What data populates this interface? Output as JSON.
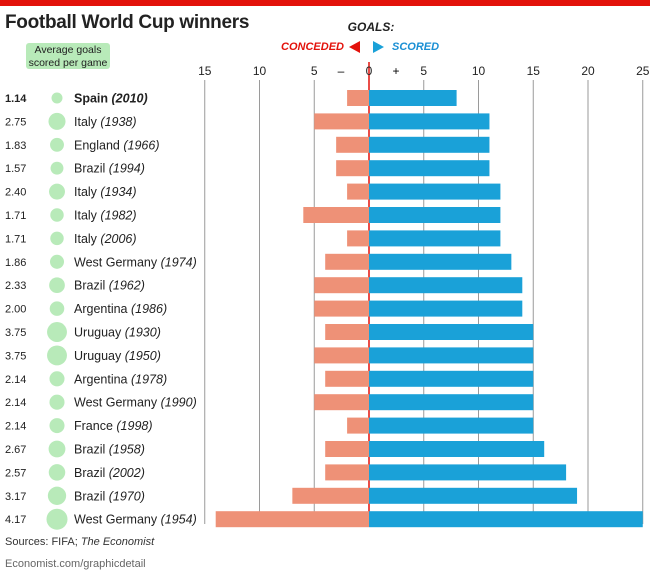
{
  "title": "Football World Cup winners",
  "legend": {
    "badge_line1": "Average goals",
    "badge_line2": "scored per game",
    "goals_heading": "GOALS:",
    "conceded_label": "CONCEDED",
    "scored_label": "SCORED",
    "minus_sign": "–",
    "plus_sign": "+"
  },
  "source": {
    "prefix": "Sources: FIFA; ",
    "publication": "The Economist"
  },
  "footer": "Economist.com/graphicdetail",
  "colors": {
    "accent_red": "#e3120b",
    "conceded": "#ee9177",
    "scored": "#1aa1d8",
    "bubble": "#b8eab9",
    "label_blue": "#1a8fd4",
    "grid": "#9a9a9a",
    "zero_line": "#e3120b"
  },
  "chart_data": {
    "type": "bar",
    "orientation": "horizontal",
    "title": "Football World Cup winners",
    "xlabel": "GOALS: CONCEDED / SCORED",
    "xlim": [
      -15,
      25
    ],
    "ticks": [
      -15,
      -10,
      -5,
      0,
      5,
      10,
      15,
      20,
      25
    ],
    "tick_labels": [
      "15",
      "10",
      "5",
      "0",
      "5",
      "10",
      "15",
      "20",
      "25"
    ],
    "rows": [
      {
        "team": "Spain",
        "year": "(2010)",
        "avg": "1.14",
        "avg_value": 1.14,
        "conceded": 2,
        "scored": 8,
        "highlight": true
      },
      {
        "team": "Italy",
        "year": "(1938)",
        "avg": "2.75",
        "avg_value": 2.75,
        "conceded": 5,
        "scored": 11
      },
      {
        "team": "England",
        "year": "(1966)",
        "avg": "1.83",
        "avg_value": 1.83,
        "conceded": 3,
        "scored": 11
      },
      {
        "team": "Brazil",
        "year": "(1994)",
        "avg": "1.57",
        "avg_value": 1.57,
        "conceded": 3,
        "scored": 11
      },
      {
        "team": "Italy",
        "year": "(1934)",
        "avg": "2.40",
        "avg_value": 2.4,
        "conceded": 2,
        "scored": 12
      },
      {
        "team": "Italy",
        "year": "(1982)",
        "avg": "1.71",
        "avg_value": 1.71,
        "conceded": 6,
        "scored": 12
      },
      {
        "team": "Italy",
        "year": "(2006)",
        "avg": "1.71",
        "avg_value": 1.71,
        "conceded": 2,
        "scored": 12
      },
      {
        "team": "West Germany",
        "year": "(1974)",
        "avg": "1.86",
        "avg_value": 1.86,
        "conceded": 4,
        "scored": 13
      },
      {
        "team": "Brazil",
        "year": "(1962)",
        "avg": "2.33",
        "avg_value": 2.33,
        "conceded": 5,
        "scored": 14
      },
      {
        "team": "Argentina",
        "year": "(1986)",
        "avg": "2.00",
        "avg_value": 2.0,
        "conceded": 5,
        "scored": 14
      },
      {
        "team": "Uruguay",
        "year": "(1930)",
        "avg": "3.75",
        "avg_value": 3.75,
        "conceded": 4,
        "scored": 15
      },
      {
        "team": "Uruguay",
        "year": "(1950)",
        "avg": "3.75",
        "avg_value": 3.75,
        "conceded": 5,
        "scored": 15
      },
      {
        "team": "Argentina",
        "year": "(1978)",
        "avg": "2.14",
        "avg_value": 2.14,
        "conceded": 4,
        "scored": 15
      },
      {
        "team": "West Germany",
        "year": "(1990)",
        "avg": "2.14",
        "avg_value": 2.14,
        "conceded": 5,
        "scored": 15
      },
      {
        "team": "France",
        "year": "(1998)",
        "avg": "2.14",
        "avg_value": 2.14,
        "conceded": 2,
        "scored": 15
      },
      {
        "team": "Brazil",
        "year": "(1958)",
        "avg": "2.67",
        "avg_value": 2.67,
        "conceded": 4,
        "scored": 16
      },
      {
        "team": "Brazil",
        "year": "(2002)",
        "avg": "2.57",
        "avg_value": 2.57,
        "conceded": 4,
        "scored": 18
      },
      {
        "team": "Brazil",
        "year": "(1970)",
        "avg": "3.17",
        "avg_value": 3.17,
        "conceded": 7,
        "scored": 19
      },
      {
        "team": "West Germany",
        "year": "(1954)",
        "avg": "4.17",
        "avg_value": 4.17,
        "conceded": 14,
        "scored": 25
      }
    ]
  }
}
